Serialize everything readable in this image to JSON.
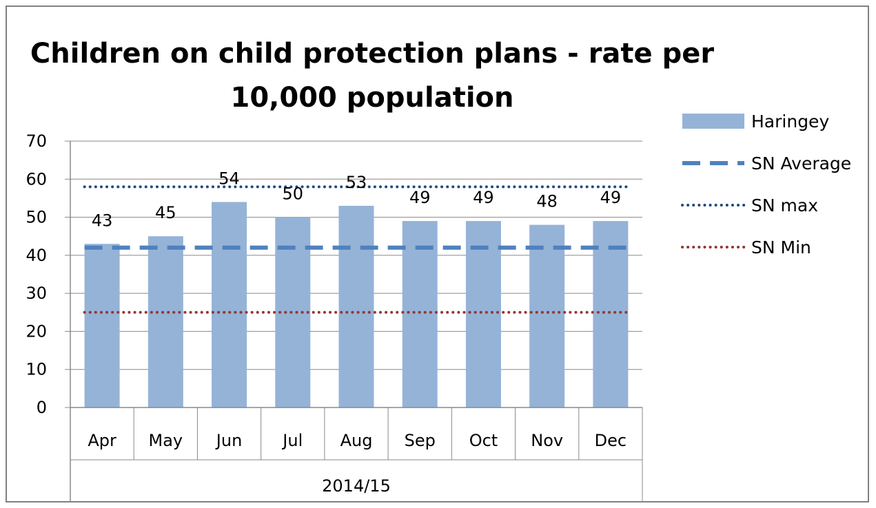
{
  "chart_data": {
    "type": "bar",
    "title": "Children on child protection plans - rate per 10,000 population",
    "xlabel": "",
    "ylabel": "",
    "group_label": "2014/15",
    "categories": [
      "Apr",
      "May",
      "Jun",
      "Jul",
      "Aug",
      "Sep",
      "Oct",
      "Nov",
      "Dec"
    ],
    "series": [
      {
        "name": "Haringey",
        "kind": "bar",
        "color": "#95b3d7",
        "values": [
          43,
          45,
          54,
          50,
          53,
          49,
          49,
          48,
          49
        ],
        "labels": [
          "43",
          "45",
          "54",
          "50",
          "53",
          "49",
          "49",
          "48",
          "49"
        ]
      },
      {
        "name": "SN Average",
        "kind": "line",
        "style": "dashed",
        "color": "#4f81bd",
        "values": [
          42,
          42,
          42,
          42,
          42,
          42,
          42,
          42,
          42
        ]
      },
      {
        "name": "SN max",
        "kind": "line",
        "style": "dotted",
        "color": "#1f497d",
        "values": [
          58,
          58,
          58,
          58,
          58,
          58,
          58,
          58,
          58
        ]
      },
      {
        "name": "SN Min",
        "kind": "line",
        "style": "dotted",
        "color": "#943634",
        "values": [
          25,
          25,
          25,
          25,
          25,
          25,
          25,
          25,
          25
        ]
      }
    ],
    "ylim": [
      0,
      70
    ],
    "yticks": [
      "0",
      "10",
      "20",
      "30",
      "40",
      "50",
      "60",
      "70"
    ],
    "grid": true,
    "legend_position": "right"
  }
}
